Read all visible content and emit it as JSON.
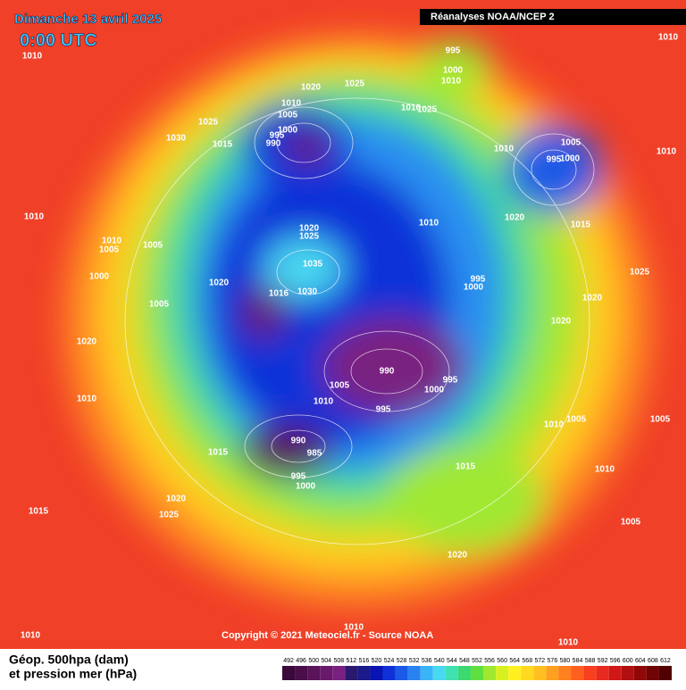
{
  "header": {
    "title": "Dimanche 13 avril 2025",
    "time": "0:00 UTC",
    "source_box": "Réanalyses NOAA/NCEP 2"
  },
  "map": {
    "isobar_labels": [
      1010,
      1010,
      995,
      1000,
      1010,
      1020,
      1025,
      1010,
      1005,
      1000,
      995,
      990,
      1025,
      1030,
      1015,
      1025,
      1010,
      1010,
      1005,
      995,
      1000,
      1010,
      1010,
      1020,
      1015,
      1010,
      1020,
      1025,
      1010,
      1005,
      1005,
      1035,
      1030,
      1020,
      1016,
      1000,
      1005,
      995,
      1000,
      1025,
      1020,
      1020,
      1020,
      990,
      995,
      1000,
      1005,
      1010,
      995,
      1010,
      1005,
      1010,
      1005,
      990,
      985,
      995,
      1000,
      1015,
      1015,
      1010,
      1020,
      1025,
      1015,
      1005,
      1020,
      1010,
      1010,
      1010
    ]
  },
  "footer": {
    "copyright": "Copyright © 2021 Meteociel.fr - Source NOAA",
    "legend_line1": "Géop. 500hpa (dam)",
    "legend_line2": "et pression mer (hPa)"
  },
  "colorbar": {
    "values": [
      492,
      496,
      500,
      504,
      508,
      512,
      516,
      520,
      524,
      528,
      532,
      536,
      540,
      544,
      548,
      552,
      556,
      560,
      564,
      568,
      572,
      576,
      580,
      584,
      588,
      592,
      596,
      600,
      604,
      608,
      612
    ],
    "colors": [
      "#3a0a3a",
      "#4a0f4a",
      "#5a145a",
      "#6a1a6a",
      "#7a2080",
      "#2a1a6e",
      "#1a1a8a",
      "#0a14b4",
      "#1030d8",
      "#1a5ae6",
      "#2a82f0",
      "#3ab4f8",
      "#48d8f0",
      "#40e0b0",
      "#3cd870",
      "#60e040",
      "#a0e830",
      "#d8f020",
      "#fff020",
      "#ffd820",
      "#ffc020",
      "#ffa020",
      "#ff8020",
      "#ff6020",
      "#f84020",
      "#e82a20",
      "#d01818",
      "#b01010",
      "#900808",
      "#700404",
      "#500000"
    ]
  }
}
